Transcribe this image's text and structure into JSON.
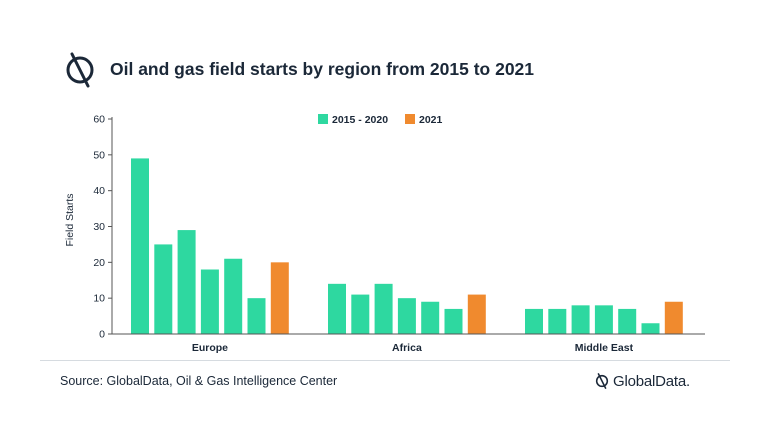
{
  "header": {
    "title": "Oil and gas field starts by region from 2015 to 2021"
  },
  "footer": {
    "source": "Source: GlobalData, Oil & Gas Intelligence Center",
    "brand": "GlobalData."
  },
  "colors": {
    "series_2015_2020": "#2ed8a0",
    "series_2021": "#f08a2e",
    "axis": "#555555",
    "text": "#1b2838"
  },
  "chart_data": {
    "type": "bar",
    "title": "Oil and gas field starts by region from 2015 to 2021",
    "ylabel": "Field Starts",
    "xlabel": "",
    "ylim": [
      0,
      60
    ],
    "yticks": [
      0,
      10,
      20,
      30,
      40,
      50,
      60
    ],
    "legend": {
      "position": "top",
      "entries": [
        "2015 - 2020",
        "2021"
      ]
    },
    "groups": [
      {
        "category": "Europe",
        "values_2015_2020": [
          49,
          25,
          29,
          18,
          21,
          10
        ],
        "value_2021": 20
      },
      {
        "category": "Africa",
        "values_2015_2020": [
          14,
          11,
          14,
          10,
          9,
          7
        ],
        "value_2021": 11
      },
      {
        "category": "Middle East",
        "values_2015_2020": [
          7,
          7,
          8,
          8,
          7,
          3
        ],
        "value_2021": 9
      }
    ]
  }
}
